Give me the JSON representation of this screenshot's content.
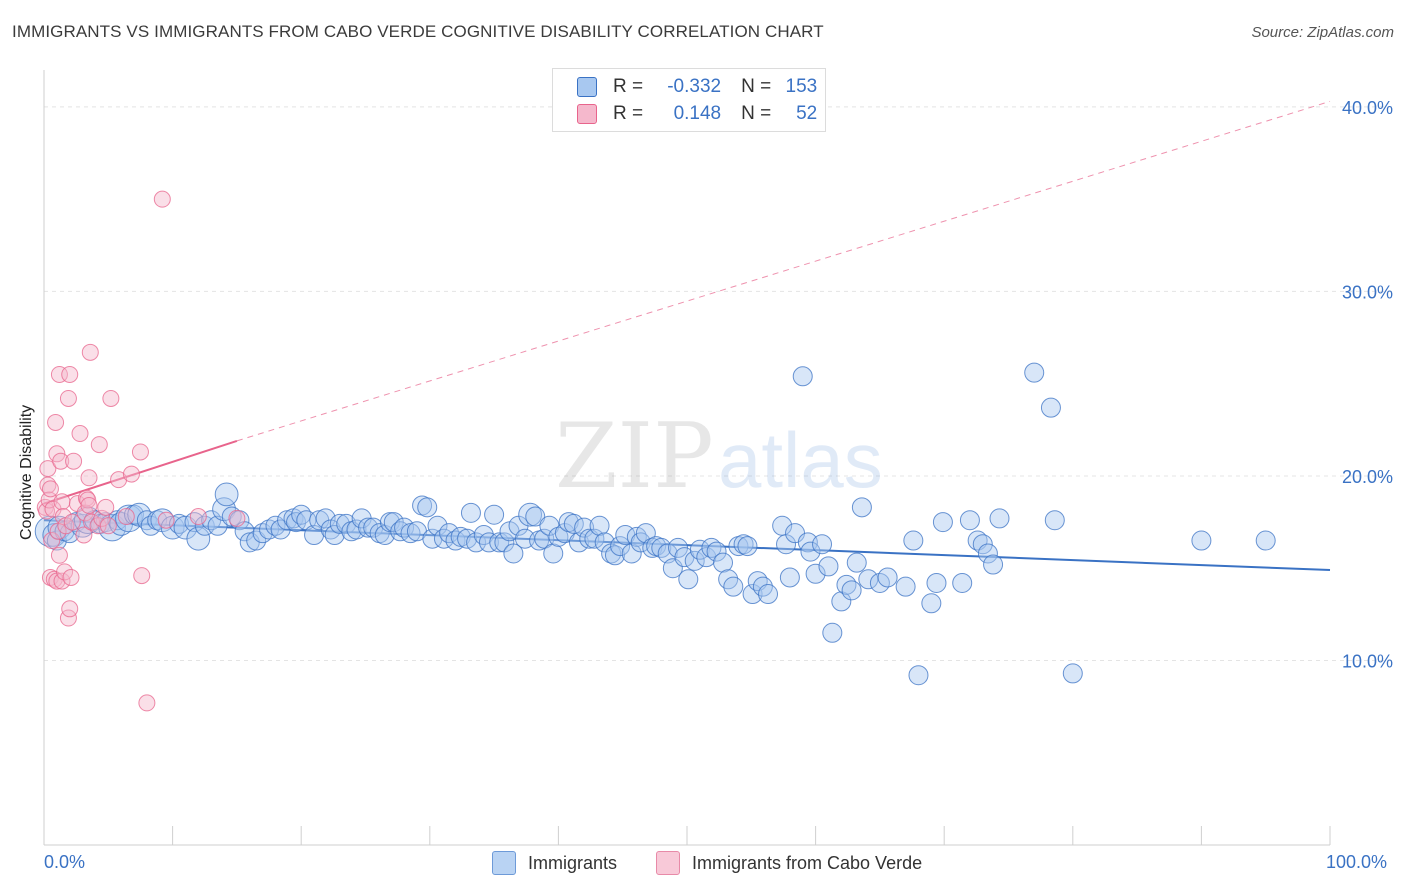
{
  "title": "IMMIGRANTS VS IMMIGRANTS FROM CABO VERDE COGNITIVE DISABILITY CORRELATION CHART",
  "source": "Source: ZipAtlas.com",
  "watermark": {
    "zip": "ZIP",
    "atlas": "atlas"
  },
  "colors": {
    "blue": "#3a72c4",
    "blue_fill": "#a8c8f0",
    "pink": "#e8648c",
    "pink_fill": "#f5b8cc",
    "grid": "#e4e4e4"
  },
  "legend_top": {
    "rows": [
      {
        "r_label": "R =",
        "r_value": "-0.332",
        "n_label": "N =",
        "n_value": "153"
      },
      {
        "r_label": "R =",
        "r_value": "0.148",
        "n_label": "N =",
        "n_value": "52"
      }
    ]
  },
  "legend_bottom": [
    "Immigrants",
    "Immigrants from Cabo Verde"
  ],
  "chart_data": {
    "type": "scatter",
    "title": "IMMIGRANTS VS IMMIGRANTS FROM CABO VERDE COGNITIVE DISABILITY CORRELATION CHART",
    "xlabel": "",
    "ylabel": "Cognitive Disability",
    "xlim": [
      0,
      100
    ],
    "ylim": [
      0,
      42
    ],
    "x_tick_labels": [
      "0.0%",
      "100.0%"
    ],
    "y_ticks": [
      10,
      20,
      30,
      40
    ],
    "y_tick_labels": [
      "10.0%",
      "20.0%",
      "30.0%",
      "40.0%"
    ],
    "grid": true,
    "legend_placement": "top-center",
    "series": [
      {
        "name": "Immigrants",
        "color": "#3a72c4",
        "trend": {
          "x": [
            0,
            100
          ],
          "y": [
            17.6,
            14.9
          ],
          "style": "solid"
        },
        "points": [
          [
            0.5,
            17.0,
            16
          ],
          [
            0.8,
            16.8,
            12
          ],
          [
            1.0,
            16.5,
            10
          ],
          [
            1.2,
            17.2,
            12
          ],
          [
            1.6,
            17.0,
            10
          ],
          [
            2.0,
            16.9,
            10
          ],
          [
            2.5,
            17.5,
            10
          ],
          [
            3.0,
            17.3,
            12
          ],
          [
            3.4,
            17.6,
            14
          ],
          [
            3.9,
            17.6,
            10
          ],
          [
            4.4,
            17.4,
            10
          ],
          [
            4.8,
            17.5,
            10
          ],
          [
            5.3,
            17.2,
            14
          ],
          [
            5.7,
            17.6,
            10
          ],
          [
            6.0,
            17.4,
            12
          ],
          [
            6.6,
            17.7,
            14
          ],
          [
            7.0,
            17.9,
            10
          ],
          [
            7.4,
            17.9,
            12
          ],
          [
            8.0,
            17.6,
            10
          ],
          [
            8.3,
            17.3,
            10
          ],
          [
            8.8,
            17.6,
            10
          ],
          [
            9.2,
            17.6,
            12
          ],
          [
            10.0,
            17.2,
            12
          ],
          [
            10.5,
            17.4,
            10
          ],
          [
            11.0,
            17.2,
            12
          ],
          [
            11.7,
            17.5,
            10
          ],
          [
            12.0,
            16.6,
            12
          ],
          [
            12.5,
            17.3,
            10
          ],
          [
            13.0,
            17.6,
            10
          ],
          [
            13.5,
            17.3,
            10
          ],
          [
            14.0,
            18.2,
            12
          ],
          [
            14.2,
            19.0,
            12
          ],
          [
            14.6,
            17.8,
            10
          ],
          [
            15.2,
            17.6,
            10
          ],
          [
            15.6,
            17.0,
            10
          ],
          [
            16.0,
            16.4,
            10
          ],
          [
            16.5,
            16.5,
            10
          ],
          [
            17.0,
            16.9,
            10
          ],
          [
            17.5,
            17.1,
            10
          ],
          [
            18.0,
            17.3,
            10
          ],
          [
            18.4,
            17.1,
            10
          ],
          [
            18.9,
            17.6,
            10
          ],
          [
            19.4,
            17.7,
            10
          ],
          [
            19.6,
            17.5,
            10
          ],
          [
            20.0,
            17.9,
            10
          ],
          [
            20.4,
            17.6,
            10
          ],
          [
            21.0,
            16.8,
            10
          ],
          [
            21.4,
            17.6,
            10
          ],
          [
            21.9,
            17.7,
            10
          ],
          [
            22.3,
            17.1,
            10
          ],
          [
            22.6,
            16.8,
            10
          ],
          [
            23.0,
            17.4,
            10
          ],
          [
            23.5,
            17.4,
            10
          ],
          [
            23.9,
            17.0,
            10
          ],
          [
            24.3,
            17.1,
            10
          ],
          [
            24.7,
            17.7,
            10
          ],
          [
            25.2,
            17.2,
            10
          ],
          [
            25.6,
            17.2,
            10
          ],
          [
            26.1,
            16.9,
            10
          ],
          [
            26.5,
            16.8,
            10
          ],
          [
            26.9,
            17.5,
            10
          ],
          [
            27.2,
            17.5,
            10
          ],
          [
            27.7,
            17.0,
            10
          ],
          [
            28.0,
            17.2,
            10
          ],
          [
            28.5,
            16.9,
            10
          ],
          [
            29.0,
            17.0,
            10
          ],
          [
            29.4,
            18.4,
            10
          ],
          [
            29.8,
            18.3,
            10
          ],
          [
            30.2,
            16.6,
            10
          ],
          [
            30.6,
            17.3,
            10
          ],
          [
            31.1,
            16.6,
            10
          ],
          [
            31.5,
            16.9,
            10
          ],
          [
            32.0,
            16.5,
            10
          ],
          [
            32.4,
            16.7,
            10
          ],
          [
            32.9,
            16.6,
            10
          ],
          [
            33.2,
            18.0,
            10
          ],
          [
            33.6,
            16.4,
            10
          ],
          [
            34.2,
            16.8,
            10
          ],
          [
            34.6,
            16.4,
            10
          ],
          [
            35.0,
            17.9,
            10
          ],
          [
            35.4,
            16.4,
            10
          ],
          [
            35.8,
            16.4,
            10
          ],
          [
            36.2,
            17.0,
            10
          ],
          [
            36.5,
            15.8,
            10
          ],
          [
            36.9,
            17.3,
            10
          ],
          [
            37.4,
            16.6,
            10
          ],
          [
            37.8,
            17.9,
            12
          ],
          [
            38.2,
            17.8,
            10
          ],
          [
            38.5,
            16.5,
            10
          ],
          [
            38.9,
            16.6,
            10
          ],
          [
            39.3,
            17.3,
            10
          ],
          [
            39.6,
            15.8,
            10
          ],
          [
            40.0,
            16.7,
            10
          ],
          [
            40.5,
            16.9,
            10
          ],
          [
            40.8,
            17.5,
            10
          ],
          [
            41.2,
            17.4,
            10
          ],
          [
            41.6,
            16.4,
            10
          ],
          [
            42.0,
            17.2,
            10
          ],
          [
            42.4,
            16.6,
            10
          ],
          [
            42.8,
            16.6,
            10
          ],
          [
            43.2,
            17.3,
            10
          ],
          [
            43.6,
            16.4,
            10
          ],
          [
            44.1,
            15.8,
            10
          ],
          [
            44.4,
            15.7,
            10
          ],
          [
            44.8,
            16.2,
            10
          ],
          [
            45.2,
            16.8,
            10
          ],
          [
            45.7,
            15.8,
            10
          ],
          [
            46.1,
            16.7,
            10
          ],
          [
            46.4,
            16.4,
            10
          ],
          [
            46.8,
            16.9,
            10
          ],
          [
            47.3,
            16.1,
            10
          ],
          [
            47.6,
            16.2,
            10
          ],
          [
            48.0,
            16.1,
            10
          ],
          [
            48.5,
            15.8,
            10
          ],
          [
            48.9,
            15.0,
            10
          ],
          [
            49.3,
            16.1,
            10
          ],
          [
            49.8,
            15.6,
            10
          ],
          [
            50.1,
            14.4,
            10
          ],
          [
            50.6,
            15.4,
            10
          ],
          [
            51.0,
            16.0,
            10
          ],
          [
            51.5,
            15.6,
            10
          ],
          [
            51.9,
            16.1,
            10
          ],
          [
            52.3,
            15.9,
            10
          ],
          [
            52.8,
            15.3,
            10
          ],
          [
            53.2,
            14.4,
            10
          ],
          [
            53.6,
            14.0,
            10
          ],
          [
            54.0,
            16.2,
            10
          ],
          [
            54.4,
            16.3,
            10
          ],
          [
            54.7,
            16.2,
            10
          ],
          [
            55.1,
            13.6,
            10
          ],
          [
            55.5,
            14.3,
            10
          ],
          [
            55.9,
            14.0,
            10
          ],
          [
            56.3,
            13.6,
            10
          ],
          [
            57.4,
            17.3,
            10
          ],
          [
            57.7,
            16.3,
            10
          ],
          [
            58.0,
            14.5,
            10
          ],
          [
            58.4,
            16.9,
            10
          ],
          [
            59.0,
            25.4,
            10
          ],
          [
            59.4,
            16.4,
            10
          ],
          [
            59.6,
            15.9,
            10
          ],
          [
            60.0,
            14.7,
            10
          ],
          [
            60.5,
            16.3,
            10
          ],
          [
            61.0,
            15.1,
            10
          ],
          [
            61.3,
            11.5,
            10
          ],
          [
            62.0,
            13.2,
            10
          ],
          [
            62.4,
            14.1,
            10
          ],
          [
            62.8,
            13.8,
            10
          ],
          [
            63.2,
            15.3,
            10
          ],
          [
            63.6,
            18.3,
            10
          ],
          [
            64.1,
            14.4,
            10
          ],
          [
            65.0,
            14.2,
            10
          ],
          [
            65.6,
            14.5,
            10
          ],
          [
            67.0,
            14.0,
            10
          ],
          [
            67.6,
            16.5,
            10
          ],
          [
            68.0,
            9.2,
            10
          ],
          [
            69.0,
            13.1,
            10
          ],
          [
            69.4,
            14.2,
            10
          ],
          [
            69.9,
            17.5,
            10
          ],
          [
            71.4,
            14.2,
            10
          ],
          [
            72.0,
            17.6,
            10
          ],
          [
            72.6,
            16.5,
            10
          ],
          [
            73.0,
            16.3,
            10
          ],
          [
            73.4,
            15.8,
            10
          ],
          [
            73.8,
            15.2,
            10
          ],
          [
            74.3,
            17.7,
            10
          ],
          [
            77.0,
            25.6,
            10
          ],
          [
            78.3,
            23.7,
            10
          ],
          [
            78.6,
            17.6,
            10
          ],
          [
            80.0,
            9.3,
            10
          ],
          [
            90.0,
            16.5,
            10
          ],
          [
            95.0,
            16.5,
            10
          ]
        ]
      },
      {
        "name": "Immigrants from Cabo Verde",
        "color": "#e8648c",
        "trend": {
          "x": [
            0,
            15
          ],
          "y": [
            18.5,
            21.9
          ],
          "x_dashed_to": 100,
          "y_dashed_to": 40.3
        },
        "points": [
          [
            0.1,
            18.3
          ],
          [
            0.2,
            18.1
          ],
          [
            0.3,
            19.5
          ],
          [
            0.3,
            20.4
          ],
          [
            0.4,
            18.7
          ],
          [
            0.5,
            19.3
          ],
          [
            0.5,
            14.5
          ],
          [
            0.6,
            16.5
          ],
          [
            0.7,
            18.2
          ],
          [
            0.8,
            14.4
          ],
          [
            0.9,
            22.9
          ],
          [
            1.0,
            21.2
          ],
          [
            1.0,
            14.3
          ],
          [
            1.1,
            17.0
          ],
          [
            1.2,
            25.5
          ],
          [
            1.2,
            15.7
          ],
          [
            1.3,
            20.8
          ],
          [
            1.4,
            14.3
          ],
          [
            1.4,
            18.6
          ],
          [
            1.5,
            17.8
          ],
          [
            1.6,
            14.8
          ],
          [
            1.7,
            17.3
          ],
          [
            1.9,
            24.2
          ],
          [
            1.9,
            12.3
          ],
          [
            2.0,
            12.8
          ],
          [
            2.0,
            25.5
          ],
          [
            2.1,
            14.5
          ],
          [
            2.2,
            17.5
          ],
          [
            2.3,
            20.8
          ],
          [
            2.6,
            18.5
          ],
          [
            2.8,
            22.3
          ],
          [
            3.1,
            16.8
          ],
          [
            3.2,
            18.0
          ],
          [
            3.3,
            18.8
          ],
          [
            3.4,
            18.7
          ],
          [
            3.5,
            18.4
          ],
          [
            3.5,
            19.9
          ],
          [
            3.6,
            26.7
          ],
          [
            3.7,
            17.5
          ],
          [
            4.2,
            17.3
          ],
          [
            4.3,
            21.7
          ],
          [
            4.5,
            17.7
          ],
          [
            4.8,
            18.3
          ],
          [
            5.0,
            17.3
          ],
          [
            5.2,
            24.2
          ],
          [
            5.8,
            19.8
          ],
          [
            6.4,
            17.8
          ],
          [
            6.8,
            20.1
          ],
          [
            7.5,
            21.3
          ],
          [
            7.6,
            14.6
          ],
          [
            8.0,
            7.7
          ],
          [
            9.2,
            35.0
          ],
          [
            9.5,
            17.6
          ],
          [
            12.0,
            17.8
          ],
          [
            15.0,
            17.7
          ]
        ]
      }
    ]
  }
}
